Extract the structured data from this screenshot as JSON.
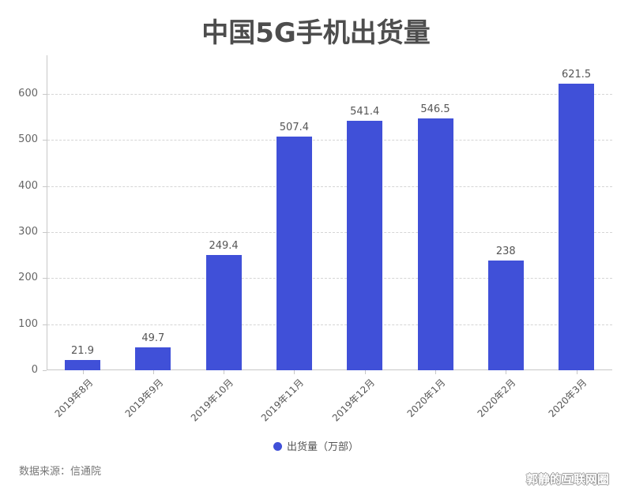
{
  "chart_data": {
    "type": "bar",
    "title": "中国5G手机出货量",
    "categories": [
      "2019年8月",
      "2019年9月",
      "2019年10月",
      "2019年11月",
      "2019年12月",
      "2020年1月",
      "2020年2月",
      "2020年3月"
    ],
    "series": [
      {
        "name": "出货量（万部）",
        "values": [
          21.9,
          49.7,
          249.4,
          507.4,
          541.4,
          546.5,
          238,
          621.5
        ],
        "color": "#4050d8"
      }
    ],
    "value_labels": [
      "21.9",
      "49.7",
      "249.4",
      "507.4",
      "541.4",
      "546.5",
      "238",
      "621.5"
    ],
    "xlabel": "",
    "ylabel": "",
    "ylim": [
      0,
      684
    ],
    "yticks": [
      0,
      100,
      200,
      300,
      400,
      500,
      600
    ],
    "grid": true,
    "legend_position": "bottom"
  },
  "header": {
    "title": "中国5G手机出货量"
  },
  "legend": {
    "label": "出货量（万部）"
  },
  "footer": {
    "source": "数据来源：信通院",
    "watermark": "郭静的互联网圈"
  }
}
